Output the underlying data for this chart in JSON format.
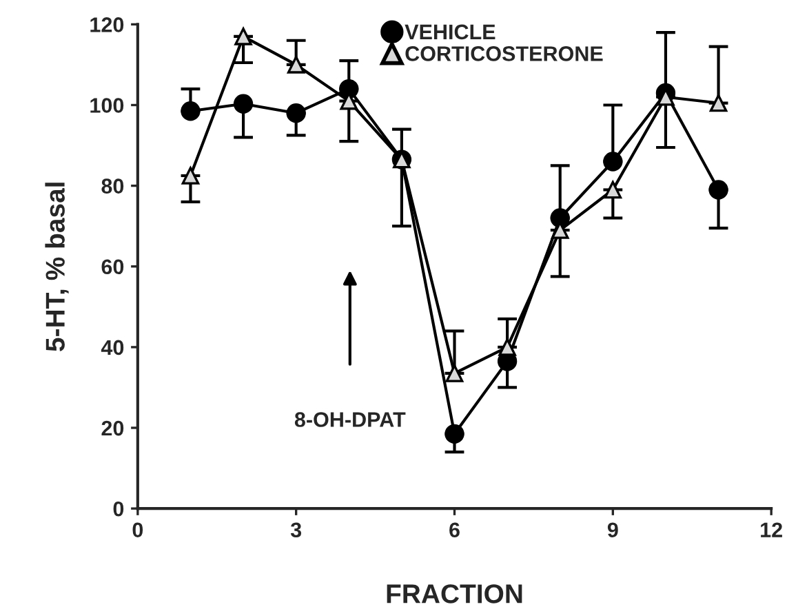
{
  "chart_data": {
    "type": "line",
    "xlabel": "FRACTION",
    "ylabel": "5-HT, % basal",
    "x": [
      1,
      2,
      3,
      4,
      5,
      6,
      7,
      8,
      9,
      10,
      11
    ],
    "series": [
      {
        "name": "VEHICLE",
        "color": "#000000",
        "marker": "circle",
        "values": [
          98.5,
          100.3,
          98,
          104,
          86.5,
          18.5,
          36.5,
          72,
          86,
          103,
          79
        ],
        "errors": [
          [
            98.5,
            104
          ],
          [
            92,
            100.3
          ],
          [
            92.5,
            98
          ],
          [
            104,
            111
          ],
          [
            86.5,
            94
          ],
          [
            14,
            18.5
          ],
          [
            30,
            36.5
          ],
          [
            72,
            85
          ],
          [
            86,
            100
          ],
          [
            103,
            118
          ],
          [
            69.5,
            79
          ]
        ]
      },
      {
        "name": "CORTICOSTERONE",
        "color": "#000000",
        "marker": "triangle",
        "values": [
          82.5,
          117,
          110,
          101,
          86.5,
          33.5,
          40,
          69,
          79,
          102,
          100.5
        ],
        "errors": [
          [
            76,
            82.5
          ],
          [
            110.5,
            117
          ],
          [
            110,
            116
          ],
          [
            91,
            101
          ],
          [
            70,
            86.5
          ],
          [
            33.5,
            44
          ],
          [
            40,
            47
          ],
          [
            57.5,
            69
          ],
          [
            72,
            79
          ],
          [
            89.5,
            102
          ],
          [
            100.5,
            114.5
          ]
        ]
      }
    ],
    "xlim": [
      0,
      12
    ],
    "xticks": [
      0,
      3,
      6,
      9,
      12
    ],
    "ylim": [
      0,
      120
    ],
    "yticks": [
      0,
      20,
      40,
      60,
      80,
      100,
      120
    ],
    "annotations": [
      "8-OH-DPAT"
    ],
    "legend": "top right",
    "grid": false
  }
}
